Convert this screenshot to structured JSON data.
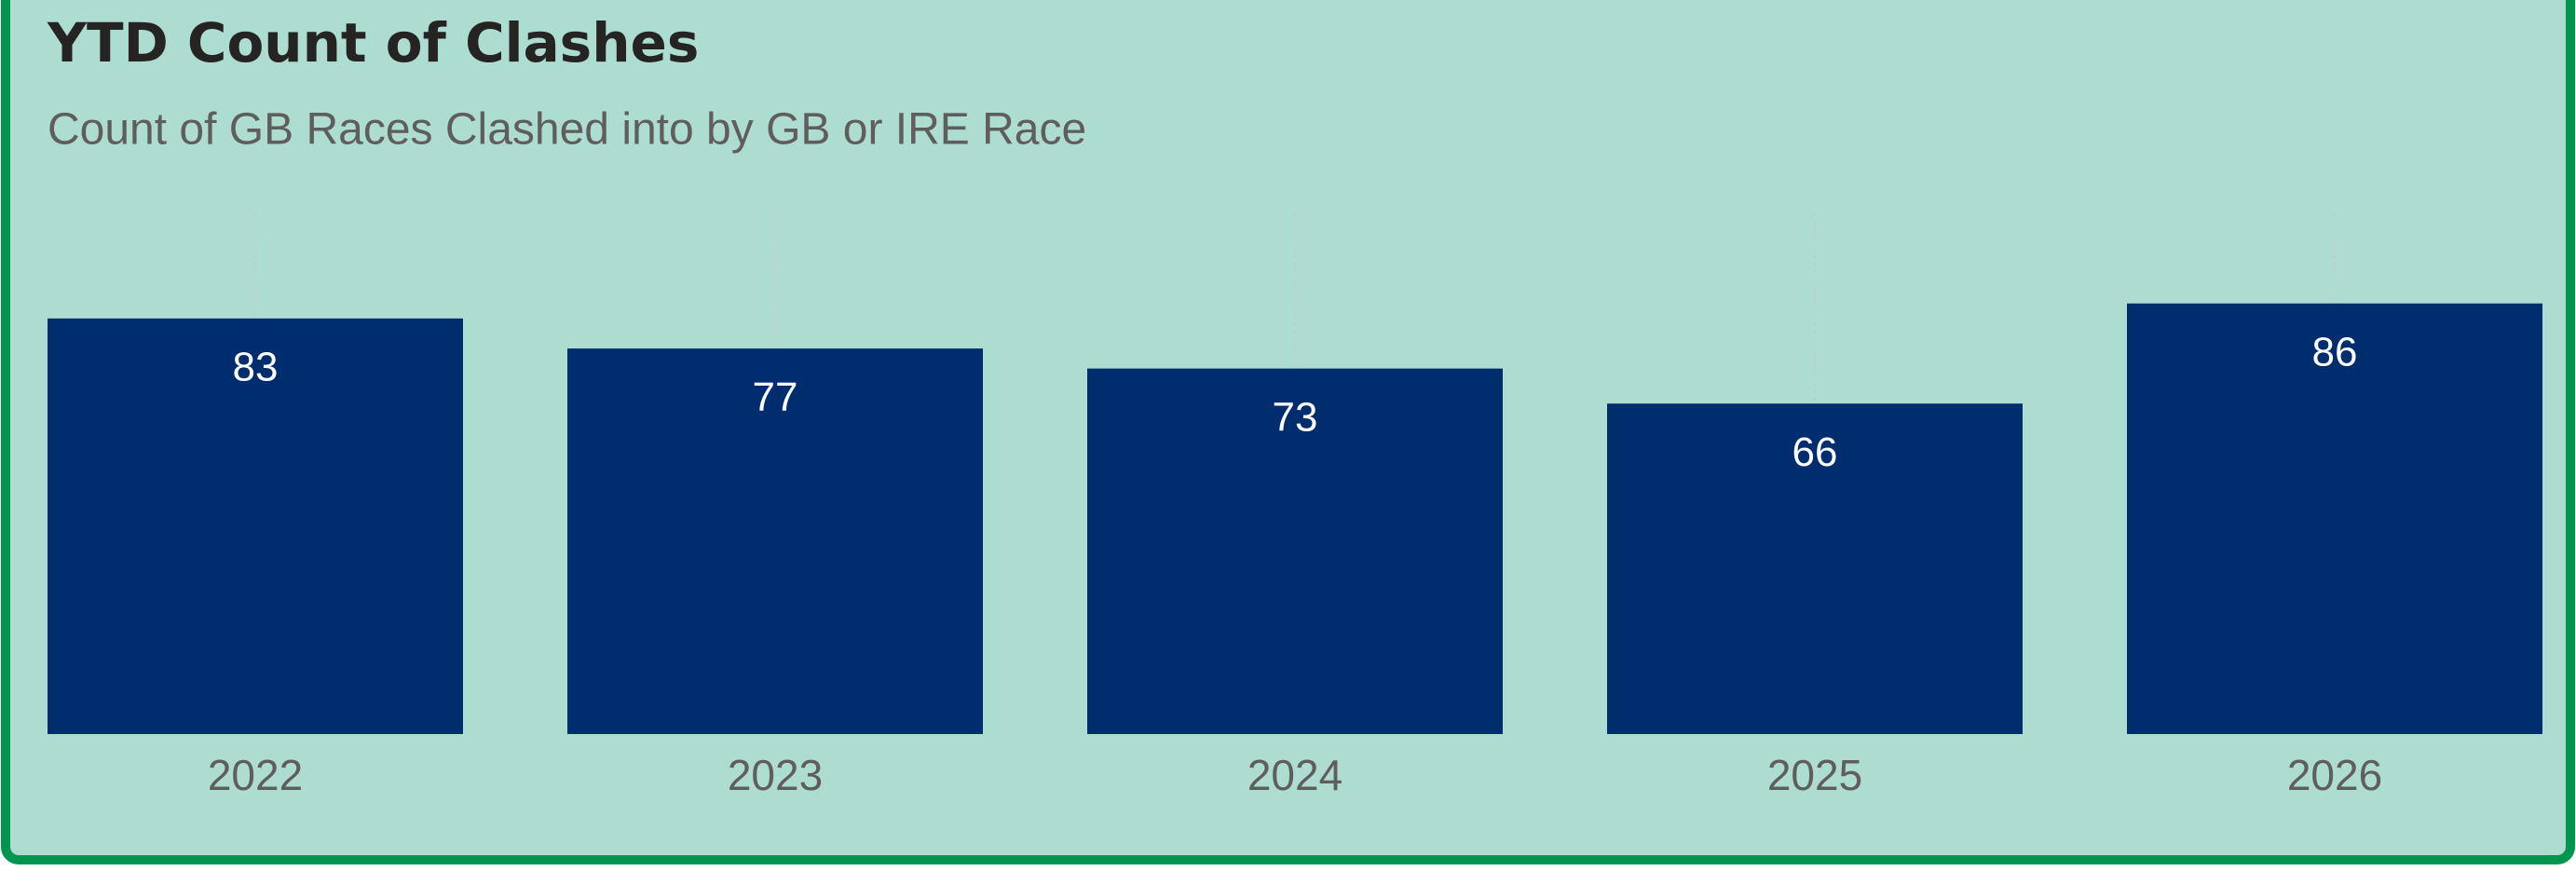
{
  "chart_data": {
    "type": "bar",
    "title": "YTD Count of Clashes",
    "subtitle": "Count of GB Races Clashed into by GB or IRE Race",
    "categories": [
      "2022",
      "2023",
      "2024",
      "2025",
      "2026"
    ],
    "values": [
      83,
      77,
      73,
      66,
      86
    ],
    "color": "#002d6e",
    "ylim": [
      0,
      104
    ]
  }
}
